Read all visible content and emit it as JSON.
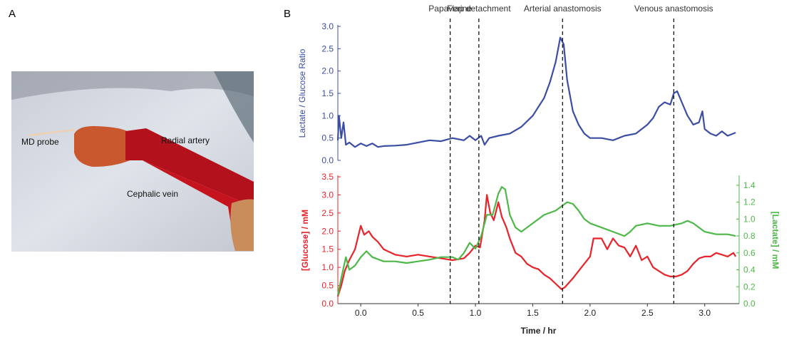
{
  "panel_labels": [
    "A",
    "B"
  ],
  "photo": {
    "labels": [
      "MD probe",
      "Radial artery",
      "Cephalic vein"
    ]
  },
  "chart_data": [
    {
      "type": "line",
      "ylabel": "Lactate / Glucose Ratio",
      "xlim": [
        -0.2,
        3.3
      ],
      "ylim": [
        0,
        3
      ],
      "yticks": [
        {
          "value": 0,
          "label": "0.0"
        },
        {
          "value": 0.5,
          "label": "0.5"
        },
        {
          "value": 1,
          "label": "1.0"
        },
        {
          "value": 1.5,
          "label": "1.5"
        },
        {
          "value": 2,
          "label": "2.0"
        },
        {
          "value": 2.5,
          "label": "2.5"
        },
        {
          "value": 3,
          "label": "3.0"
        }
      ],
      "annotations": [
        {
          "x": 0.78,
          "text": "Papaverine"
        },
        {
          "x": 1.03,
          "text": "Flap detachment"
        },
        {
          "x": 1.76,
          "text": "Arterial anastomosis"
        },
        {
          "x": 2.73,
          "text": "Venous anastomosis"
        }
      ],
      "series": [
        {
          "color": "#3b4ea3",
          "x": [
            -0.2,
            -0.19,
            -0.17,
            -0.15,
            -0.13,
            -0.1,
            -0.05,
            0,
            0.05,
            0.1,
            0.15,
            0.2,
            0.3,
            0.4,
            0.5,
            0.6,
            0.7,
            0.8,
            0.9,
            0.95,
            1.0,
            1.05,
            1.08,
            1.12,
            1.2,
            1.3,
            1.4,
            1.5,
            1.6,
            1.65,
            1.7,
            1.74,
            1.77,
            1.8,
            1.85,
            1.9,
            1.95,
            2.0,
            2.1,
            2.2,
            2.3,
            2.4,
            2.5,
            2.55,
            2.6,
            2.65,
            2.7,
            2.73,
            2.76,
            2.8,
            2.85,
            2.9,
            2.95,
            2.98,
            3.0,
            3.05,
            3.1,
            3.15,
            3.2,
            3.25,
            3.27
          ],
          "values": [
            0.45,
            1.0,
            0.5,
            0.85,
            0.35,
            0.4,
            0.3,
            0.38,
            0.32,
            0.38,
            0.3,
            0.32,
            0.33,
            0.35,
            0.4,
            0.45,
            0.43,
            0.5,
            0.45,
            0.55,
            0.45,
            0.55,
            0.35,
            0.5,
            0.55,
            0.6,
            0.75,
            1.0,
            1.4,
            1.75,
            2.2,
            2.75,
            2.6,
            1.8,
            1.1,
            0.8,
            0.6,
            0.5,
            0.5,
            0.45,
            0.55,
            0.6,
            0.8,
            0.95,
            1.2,
            1.3,
            1.25,
            1.5,
            1.55,
            1.3,
            1.0,
            0.8,
            0.85,
            1.1,
            0.7,
            0.6,
            0.55,
            0.65,
            0.55,
            0.6,
            0.62
          ]
        }
      ]
    },
    {
      "type": "line",
      "xlabel": "Time / hr",
      "ylabel": "[Glucose] / mM",
      "y2label": "[Lactate] / mM",
      "xlim": [
        -0.2,
        3.3
      ],
      "ylim": [
        0,
        3.5
      ],
      "y2lim": [
        0,
        1.5
      ],
      "xticks": [
        {
          "value": 0,
          "label": "0.0"
        },
        0.5,
        {
          "value": 1,
          "label": "1.0"
        },
        1.5,
        {
          "value": 2,
          "label": "2.0"
        },
        2.5,
        {
          "value": 3,
          "label": "3.0"
        }
      ],
      "yticks": [
        {
          "value": 0,
          "label": "0.0"
        },
        0.5,
        {
          "value": 1,
          "label": "1.0"
        },
        1.5,
        {
          "value": 2,
          "label": "2.0"
        },
        2.5,
        {
          "value": 3,
          "label": "3.0"
        },
        3.5
      ],
      "y2ticks": [
        {
          "value": 0,
          "label": "0.0"
        },
        0.2,
        0.4,
        0.6,
        0.8,
        {
          "value": 1,
          "label": "1.0"
        },
        1.2,
        1.4
      ],
      "series": [
        {
          "color": "#e8232a",
          "x": [
            -0.2,
            -0.17,
            -0.14,
            -0.1,
            -0.05,
            0,
            0.03,
            0.07,
            0.1,
            0.15,
            0.2,
            0.3,
            0.4,
            0.5,
            0.6,
            0.7,
            0.8,
            0.9,
            0.95,
            1.0,
            1.04,
            1.08,
            1.1,
            1.13,
            1.16,
            1.2,
            1.23,
            1.27,
            1.3,
            1.35,
            1.4,
            1.45,
            1.5,
            1.55,
            1.6,
            1.65,
            1.7,
            1.75,
            1.78,
            1.85,
            1.9,
            1.95,
            2.0,
            2.03,
            2.1,
            2.15,
            2.2,
            2.25,
            2.3,
            2.35,
            2.4,
            2.45,
            2.5,
            2.55,
            2.6,
            2.65,
            2.7,
            2.75,
            2.8,
            2.85,
            2.9,
            2.95,
            3.0,
            3.05,
            3.1,
            3.15,
            3.2,
            3.25,
            3.27
          ],
          "values": [
            0.2,
            0.5,
            0.9,
            1.2,
            1.5,
            2.15,
            1.9,
            2.0,
            1.85,
            1.7,
            1.5,
            1.35,
            1.3,
            1.35,
            1.3,
            1.25,
            1.2,
            1.25,
            1.4,
            1.6,
            1.55,
            2.3,
            3.0,
            2.5,
            2.3,
            2.8,
            2.4,
            2.1,
            1.8,
            1.4,
            1.3,
            1.1,
            1.0,
            0.95,
            0.8,
            0.7,
            0.55,
            0.4,
            0.45,
            0.7,
            0.9,
            1.1,
            1.3,
            1.8,
            1.8,
            1.5,
            1.8,
            1.6,
            1.55,
            1.3,
            1.6,
            1.2,
            1.3,
            1.0,
            0.9,
            0.8,
            0.75,
            0.75,
            0.8,
            0.9,
            1.1,
            1.25,
            1.3,
            1.3,
            1.4,
            1.35,
            1.3,
            1.4,
            1.3
          ]
        },
        {
          "color": "#4db848",
          "axis": "y2",
          "x": [
            -0.2,
            -0.17,
            -0.13,
            -0.1,
            -0.05,
            0,
            0.05,
            0.1,
            0.2,
            0.3,
            0.4,
            0.5,
            0.6,
            0.7,
            0.8,
            0.85,
            0.9,
            0.95,
            1.0,
            1.05,
            1.1,
            1.15,
            1.2,
            1.23,
            1.26,
            1.3,
            1.35,
            1.4,
            1.5,
            1.6,
            1.7,
            1.75,
            1.8,
            1.85,
            1.9,
            1.95,
            2.0,
            2.1,
            2.2,
            2.3,
            2.35,
            2.4,
            2.5,
            2.6,
            2.7,
            2.8,
            2.85,
            2.9,
            2.95,
            3.0,
            3.1,
            3.2,
            3.27
          ],
          "values": [
            0.1,
            0.3,
            0.55,
            0.4,
            0.45,
            0.55,
            0.62,
            0.55,
            0.5,
            0.5,
            0.48,
            0.5,
            0.52,
            0.55,
            0.55,
            0.52,
            0.6,
            0.72,
            0.65,
            0.8,
            1.05,
            1.05,
            1.3,
            1.38,
            1.35,
            1.05,
            0.9,
            0.85,
            0.95,
            1.05,
            1.1,
            1.15,
            1.2,
            1.18,
            1.1,
            1.0,
            0.95,
            0.9,
            0.85,
            0.8,
            0.85,
            0.92,
            0.95,
            0.92,
            0.92,
            0.95,
            0.98,
            0.95,
            0.9,
            0.85,
            0.82,
            0.82,
            0.8
          ]
        }
      ]
    }
  ]
}
